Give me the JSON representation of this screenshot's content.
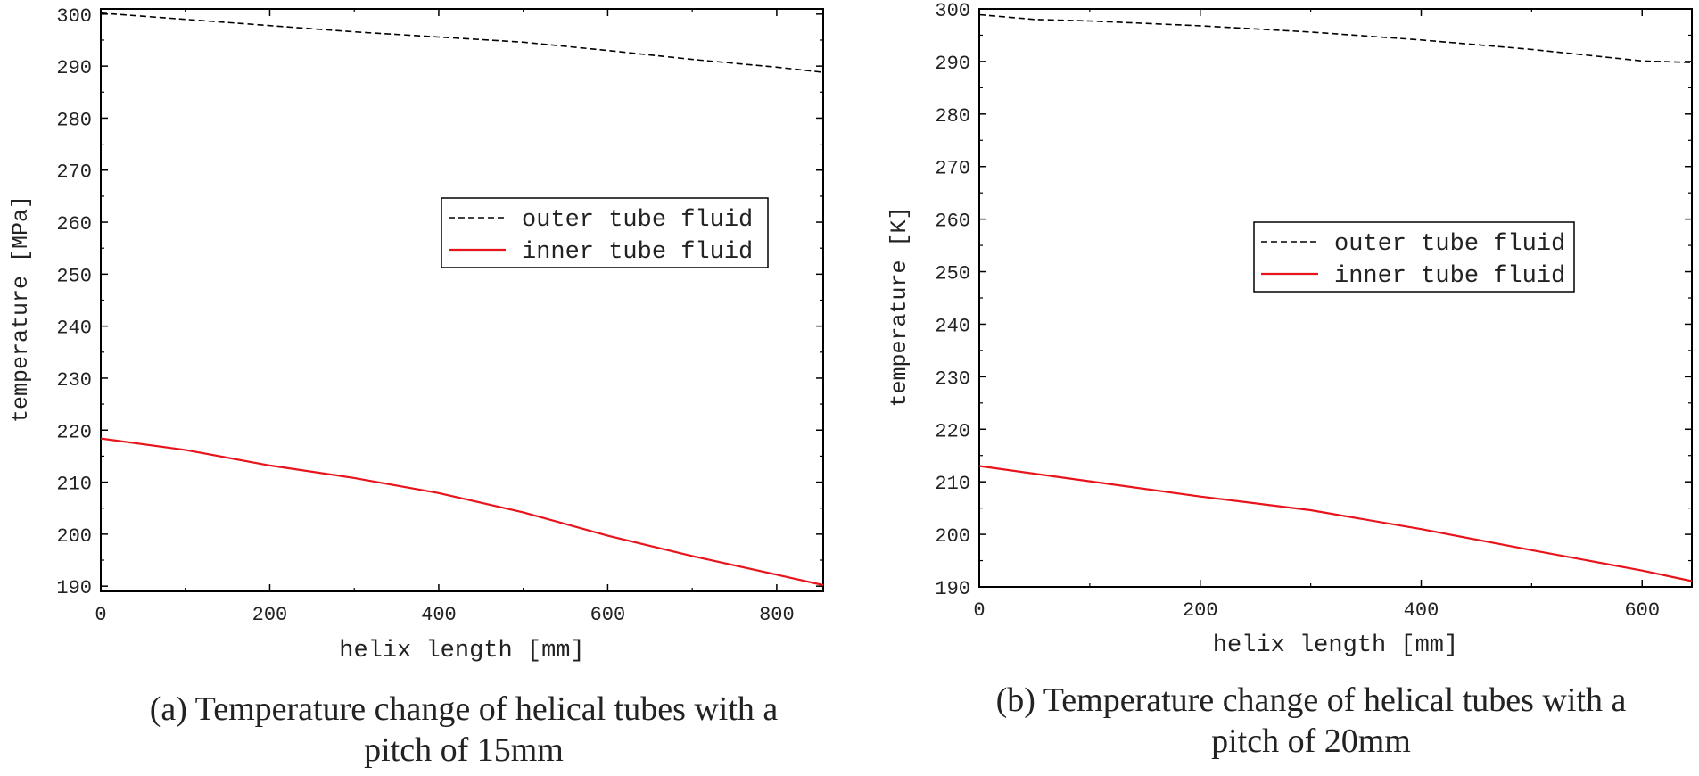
{
  "colors": {
    "outer": "#000000",
    "inner": "#e8141c",
    "axis": "#000000",
    "text": "#222222"
  },
  "chart_data": [
    {
      "type": "line",
      "xlabel": "helix length [mm]",
      "ylabel": "temperature [MPa]",
      "xlim": [
        0,
        855
      ],
      "ylim": [
        189,
        301
      ],
      "xticks": [
        0,
        200,
        400,
        600,
        800
      ],
      "yticks": [
        190,
        200,
        210,
        220,
        230,
        240,
        250,
        260,
        270,
        280,
        290,
        300
      ],
      "legend_position": "center-right",
      "series": [
        {
          "name": "outer tube fluid",
          "style": "dashed",
          "x": [
            0,
            100,
            200,
            300,
            400,
            500,
            600,
            700,
            800,
            855
          ],
          "y": [
            300.2,
            299.0,
            297.8,
            296.6,
            295.6,
            294.6,
            293.0,
            291.3,
            289.8,
            288.8
          ]
        },
        {
          "name": "inner tube fluid",
          "style": "solid",
          "x": [
            0,
            100,
            200,
            300,
            400,
            500,
            600,
            700,
            800,
            855
          ],
          "y": [
            218.4,
            216.2,
            213.2,
            210.8,
            207.9,
            204.2,
            199.7,
            195.8,
            192.2,
            190.2
          ]
        }
      ],
      "caption_lines": [
        "(a) Temperature change of helical tubes with a",
        "pitch of 15mm"
      ]
    },
    {
      "type": "line",
      "xlabel": "helix length [mm]",
      "ylabel": "temperature [K]",
      "xlim": [
        0,
        645
      ],
      "ylim": [
        190,
        300
      ],
      "xticks": [
        0,
        200,
        400,
        600
      ],
      "yticks": [
        190,
        200,
        210,
        220,
        230,
        240,
        250,
        260,
        270,
        280,
        290,
        300
      ],
      "legend_position": "center-right",
      "series": [
        {
          "name": "outer tube fluid",
          "style": "dashed",
          "x": [
            0,
            50,
            100,
            200,
            300,
            400,
            500,
            600,
            645
          ],
          "y": [
            298.9,
            298.0,
            297.7,
            296.8,
            295.6,
            294.1,
            292.3,
            290.1,
            289.8
          ]
        },
        {
          "name": "inner tube fluid",
          "style": "solid",
          "x": [
            0,
            100,
            200,
            300,
            400,
            500,
            600,
            645
          ],
          "y": [
            213.0,
            210.1,
            207.2,
            204.6,
            201.0,
            197.0,
            193.1,
            191.1
          ]
        }
      ],
      "caption_lines": [
        "(b) Temperature change of helical tubes with a",
        "pitch of 20mm"
      ]
    }
  ]
}
